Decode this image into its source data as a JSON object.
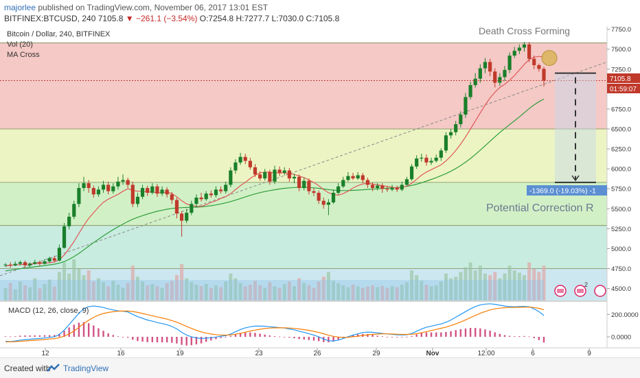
{
  "header": {
    "user": "majorlee",
    "published": "published on TradingView.com, November 06, 2017 13:01 EST",
    "symbol": "BITFINEX:BTCUSD, 240",
    "last": "7105.8",
    "change": "−261.1 (−3.54%)",
    "ohlc": "O:7254.8 H:7277.7 L:7030.0 C:7105.8"
  },
  "legend": {
    "title": "Bitcoin / Dollar, 240, BITFINEX",
    "vol": "Vol (20)",
    "ma": "MA Cross"
  },
  "annotations": {
    "death_cross": "Death Cross Forming",
    "correction": "Potential Correction R",
    "measure": "-1369.0 (-19.03%) -1",
    "price_tag": "7105.8",
    "time_tag": "01:59:07",
    "macd_label": "MACD (12, 26, close, 9)"
  },
  "footer": {
    "created": "Created with",
    "brand": "TradingView"
  },
  "colors": {
    "up": "#1a7f2a",
    "down": "#c0392b",
    "ma_fast": "#e25757",
    "ma_slow": "#2e9e3a",
    "macd": "#2196f3",
    "signal": "#f57c00",
    "hist": "#c2185b",
    "zone_red": "#f4c9c6",
    "zone_yellow": "#ecf4c4",
    "zone_green": "#d2f0c6",
    "zone_teal": "#c8ecdf"
  },
  "chart_data": {
    "type": "candlestick",
    "title": "Bitcoin / Dollar, 240, BITFINEX",
    "price_axis": [
      "7750.0",
      "7500.0",
      "7250.0",
      "7000.0",
      "6750.0",
      "6500.0",
      "6250.0",
      "6000.0",
      "5750.0",
      "5500.0",
      "5250.0",
      "5000.0",
      "4750.0",
      "4500.0"
    ],
    "macd_axis": [
      "200.0000",
      "0.0000"
    ],
    "x_ticks": [
      "12",
      "16",
      "19",
      "23",
      "26",
      "29",
      "Nov",
      "12:00",
      "6",
      "9"
    ],
    "ylim": [
      4350,
      7790
    ],
    "fib_levels": [
      7580,
      6500,
      5830,
      5290,
      4750
    ],
    "last_price": 7105.8,
    "correction_target": 5830,
    "candles": [
      [
        4790,
        4800,
        4820,
        4770
      ],
      [
        4800,
        4790,
        4830,
        4760
      ],
      [
        4790,
        4810,
        4840,
        4780
      ],
      [
        4810,
        4830,
        4850,
        4790
      ],
      [
        4830,
        4790,
        4850,
        4760
      ],
      [
        4790,
        4810,
        4830,
        4770
      ],
      [
        4810,
        4830,
        4860,
        4800
      ],
      [
        4830,
        4810,
        4850,
        4780
      ],
      [
        4810,
        4840,
        4870,
        4800
      ],
      [
        4840,
        4880,
        4900,
        4820
      ],
      [
        4880,
        4850,
        4910,
        4830
      ],
      [
        4850,
        5010,
        5050,
        4840
      ],
      [
        5010,
        5280,
        5320,
        5000
      ],
      [
        5280,
        5400,
        5450,
        5240
      ],
      [
        5400,
        5560,
        5600,
        5370
      ],
      [
        5560,
        5760,
        5820,
        5520
      ],
      [
        5760,
        5820,
        5900,
        5720
      ],
      [
        5820,
        5760,
        5860,
        5700
      ],
      [
        5760,
        5680,
        5790,
        5640
      ],
      [
        5680,
        5740,
        5780,
        5650
      ],
      [
        5740,
        5800,
        5850,
        5700
      ],
      [
        5800,
        5720,
        5840,
        5680
      ],
      [
        5720,
        5780,
        5820,
        5690
      ],
      [
        5780,
        5840,
        5900,
        5740
      ],
      [
        5840,
        5860,
        5930,
        5800
      ],
      [
        5860,
        5800,
        5890,
        5760
      ],
      [
        5800,
        5560,
        5840,
        5520
      ],
      [
        5560,
        5650,
        5700,
        5520
      ],
      [
        5650,
        5760,
        5800,
        5620
      ],
      [
        5760,
        5700,
        5790,
        5660
      ],
      [
        5700,
        5780,
        5820,
        5680
      ],
      [
        5780,
        5690,
        5810,
        5650
      ],
      [
        5690,
        5740,
        5780,
        5660
      ],
      [
        5740,
        5680,
        5770,
        5640
      ],
      [
        5680,
        5610,
        5710,
        5560
      ],
      [
        5610,
        5440,
        5640,
        5380
      ],
      [
        5440,
        5350,
        5470,
        5150
      ],
      [
        5350,
        5450,
        5500,
        5320
      ],
      [
        5450,
        5560,
        5600,
        5420
      ],
      [
        5560,
        5640,
        5680,
        5520
      ],
      [
        5640,
        5620,
        5700,
        5590
      ],
      [
        5620,
        5690,
        5720,
        5600
      ],
      [
        5690,
        5670,
        5730,
        5640
      ],
      [
        5670,
        5740,
        5780,
        5640
      ],
      [
        5740,
        5720,
        5780,
        5690
      ],
      [
        5720,
        5800,
        5840,
        5690
      ],
      [
        5800,
        5980,
        6020,
        5770
      ],
      [
        5980,
        6080,
        6120,
        5940
      ],
      [
        6080,
        6150,
        6200,
        6050
      ],
      [
        6150,
        6100,
        6190,
        6060
      ],
      [
        6100,
        6020,
        6140,
        5990
      ],
      [
        6020,
        5930,
        6060,
        5900
      ],
      [
        5930,
        5880,
        5970,
        5850
      ],
      [
        5880,
        5960,
        6000,
        5850
      ],
      [
        5960,
        5840,
        5990,
        5800
      ],
      [
        5840,
        5990,
        6040,
        5810
      ],
      [
        5990,
        5950,
        6030,
        5910
      ],
      [
        5950,
        5980,
        6020,
        5920
      ],
      [
        5980,
        5880,
        6010,
        5840
      ],
      [
        5880,
        5900,
        5940,
        5820
      ],
      [
        5900,
        5760,
        5930,
        5720
      ],
      [
        5760,
        5850,
        5890,
        5730
      ],
      [
        5850,
        5720,
        5880,
        5680
      ],
      [
        5720,
        5700,
        5760,
        5660
      ],
      [
        5700,
        5600,
        5730,
        5560
      ],
      [
        5600,
        5550,
        5640,
        5500
      ],
      [
        5550,
        5580,
        5620,
        5420
      ],
      [
        5580,
        5700,
        5740,
        5560
      ],
      [
        5700,
        5780,
        5820,
        5680
      ],
      [
        5780,
        5860,
        5900,
        5760
      ],
      [
        5860,
        5910,
        5960,
        5840
      ],
      [
        5910,
        5880,
        5950,
        5860
      ],
      [
        5880,
        5920,
        5960,
        5860
      ],
      [
        5920,
        5860,
        5950,
        5820
      ],
      [
        5860,
        5800,
        5890,
        5760
      ],
      [
        5800,
        5760,
        5830,
        5720
      ],
      [
        5760,
        5790,
        5820,
        5730
      ],
      [
        5790,
        5750,
        5820,
        5700
      ],
      [
        5750,
        5740,
        5780,
        5710
      ],
      [
        5740,
        5760,
        5800,
        5720
      ],
      [
        5760,
        5740,
        5790,
        5710
      ],
      [
        5740,
        5800,
        5840,
        5720
      ],
      [
        5800,
        5870,
        5900,
        5780
      ],
      [
        5870,
        6030,
        6060,
        5850
      ],
      [
        6030,
        6130,
        6170,
        6000
      ],
      [
        6130,
        6140,
        6190,
        6090
      ],
      [
        6140,
        6080,
        6180,
        6040
      ],
      [
        6080,
        6100,
        6140,
        6050
      ],
      [
        6100,
        6140,
        6180,
        6080
      ],
      [
        6140,
        6230,
        6260,
        6100
      ],
      [
        6230,
        6420,
        6460,
        6200
      ],
      [
        6420,
        6460,
        6500,
        6380
      ],
      [
        6460,
        6560,
        6600,
        6420
      ],
      [
        6560,
        6680,
        6720,
        6520
      ],
      [
        6680,
        6900,
        6950,
        6640
      ],
      [
        6900,
        7050,
        7090,
        6870
      ],
      [
        7050,
        7130,
        7200,
        7020
      ],
      [
        7130,
        7260,
        7310,
        7080
      ],
      [
        7260,
        7340,
        7390,
        7200
      ],
      [
        7340,
        7220,
        7380,
        7160
      ],
      [
        7220,
        7080,
        7260,
        7020
      ],
      [
        7080,
        7150,
        7200,
        7040
      ],
      [
        7150,
        7240,
        7290,
        7100
      ],
      [
        7240,
        7420,
        7460,
        7200
      ],
      [
        7420,
        7480,
        7530,
        7390
      ],
      [
        7480,
        7520,
        7560,
        7440
      ],
      [
        7520,
        7560,
        7590,
        7470
      ],
      [
        7560,
        7380,
        7590,
        7340
      ],
      [
        7380,
        7300,
        7420,
        7250
      ],
      [
        7300,
        7254,
        7320,
        7220
      ],
      [
        7254,
        7106,
        7278,
        7030
      ]
    ],
    "volume": [
      40,
      55,
      35,
      60,
      48,
      42,
      70,
      38,
      52,
      66,
      44,
      90,
      120,
      85,
      130,
      100,
      80,
      95,
      60,
      70,
      58,
      45,
      62,
      50,
      40,
      55,
      110,
      75,
      60,
      48,
      52,
      45,
      40,
      55,
      62,
      80,
      115,
      70,
      58,
      50,
      45,
      52,
      40,
      48,
      42,
      60,
      85,
      70,
      55,
      45,
      50,
      62,
      48,
      40,
      58,
      45,
      40,
      52,
      60,
      45,
      70,
      55,
      48,
      40,
      60,
      75,
      90,
      62,
      55,
      48,
      42,
      50,
      45,
      40,
      44,
      48,
      42,
      46,
      40,
      45,
      42,
      50,
      58,
      95,
      80,
      62,
      50,
      45,
      48,
      60,
      85,
      70,
      75,
      90,
      105,
      120,
      95,
      110,
      85,
      80,
      90,
      70,
      85,
      110,
      95,
      88,
      80,
      120,
      100,
      90,
      110
    ],
    "ma_fast": [
      4780,
      4790,
      4795,
      4800,
      4805,
      4808,
      4812,
      4815,
      4818,
      4824,
      4832,
      4860,
      4920,
      5000,
      5090,
      5190,
      5290,
      5380,
      5450,
      5520,
      5580,
      5620,
      5650,
      5680,
      5720,
      5750,
      5730,
      5720,
      5720,
      5710,
      5710,
      5700,
      5700,
      5710,
      5690,
      5650,
      5600,
      5560,
      5540,
      5530,
      5530,
      5550,
      5580,
      5600,
      5630,
      5650,
      5690,
      5740,
      5790,
      5830,
      5880,
      5920,
      5950,
      5960,
      5960,
      5950,
      5950,
      5950,
      5940,
      5930,
      5910,
      5890,
      5860,
      5830,
      5790,
      5740,
      5700,
      5680,
      5670,
      5690,
      5720,
      5760,
      5790,
      5810,
      5820,
      5810,
      5800,
      5790,
      5780,
      5770,
      5760,
      5770,
      5780,
      5820,
      5870,
      5920,
      5960,
      5990,
      6020,
      6050,
      6100,
      6160,
      6230,
      6310,
      6400,
      6500,
      6600,
      6700,
      6800,
      6890,
      6960,
      7020,
      7060,
      7110,
      7170,
      7240,
      7310,
      7370,
      7400,
      7410,
      7400
    ],
    "ma_slow": [
      4720,
      4730,
      4740,
      4748,
      4756,
      4764,
      4772,
      4780,
      4788,
      4796,
      4805,
      4818,
      4838,
      4866,
      4900,
      4940,
      4985,
      5030,
      5075,
      5118,
      5160,
      5200,
      5238,
      5274,
      5308,
      5340,
      5368,
      5392,
      5414,
      5434,
      5452,
      5468,
      5482,
      5494,
      5504,
      5510,
      5514,
      5516,
      5518,
      5520,
      5524,
      5530,
      5538,
      5548,
      5560,
      5574,
      5590,
      5608,
      5628,
      5648,
      5668,
      5686,
      5702,
      5716,
      5728,
      5738,
      5748,
      5756,
      5762,
      5766,
      5768,
      5768,
      5766,
      5762,
      5756,
      5748,
      5740,
      5734,
      5730,
      5728,
      5728,
      5730,
      5734,
      5738,
      5742,
      5746,
      5750,
      5754,
      5758,
      5762,
      5766,
      5772,
      5780,
      5792,
      5808,
      5826,
      5846,
      5868,
      5890,
      5914,
      5940,
      5970,
      6004,
      6042,
      6084,
      6130,
      6180,
      6234,
      6290,
      6346,
      6402,
      6456,
      6506,
      6554,
      6602,
      6652,
      6704,
      6756,
      6802,
      6842,
      6874
    ],
    "macd": [
      -40,
      -42,
      -38,
      -30,
      -25,
      -22,
      -18,
      -15,
      -10,
      -5,
      0,
      20,
      60,
      110,
      160,
      210,
      250,
      270,
      275,
      270,
      262,
      250,
      240,
      232,
      228,
      222,
      200,
      180,
      165,
      150,
      140,
      128,
      118,
      108,
      92,
      70,
      40,
      15,
      0,
      -10,
      -15,
      -12,
      -8,
      -2,
      5,
      10,
      25,
      45,
      65,
      80,
      90,
      95,
      96,
      94,
      90,
      86,
      82,
      78,
      70,
      62,
      50,
      40,
      28,
      15,
      0,
      -20,
      -35,
      -38,
      -30,
      -15,
      0,
      15,
      28,
      38,
      42,
      40,
      35,
      30,
      26,
      22,
      18,
      16,
      18,
      30,
      50,
      70,
      85,
      95,
      105,
      115,
      130,
      150,
      175,
      200,
      225,
      250,
      270,
      285,
      292,
      295,
      290,
      282,
      275,
      270,
      268,
      270,
      272,
      268,
      250,
      225,
      190
    ],
    "signal": [
      -45,
      -44,
      -43,
      -40,
      -37,
      -34,
      -31,
      -28,
      -24,
      -20,
      -16,
      -8,
      6,
      26,
      52,
      84,
      118,
      148,
      174,
      194,
      208,
      218,
      224,
      228,
      230,
      230,
      226,
      218,
      208,
      198,
      188,
      178,
      168,
      158,
      145,
      130,
      112,
      93,
      75,
      58,
      44,
      33,
      25,
      19,
      16,
      15,
      17,
      23,
      31,
      41,
      51,
      60,
      68,
      74,
      78,
      80,
      80,
      80,
      78,
      75,
      70,
      64,
      57,
      49,
      39,
      27,
      14,
      4,
      -3,
      -5,
      -4,
      0,
      6,
      12,
      18,
      22,
      25,
      26,
      26,
      25,
      23,
      21,
      21,
      23,
      28,
      36,
      46,
      56,
      66,
      76,
      87,
      100,
      115,
      132,
      151,
      171,
      191,
      210,
      226,
      240,
      250,
      256,
      260,
      262,
      263,
      264,
      265,
      265,
      262,
      254,
      241
    ]
  }
}
